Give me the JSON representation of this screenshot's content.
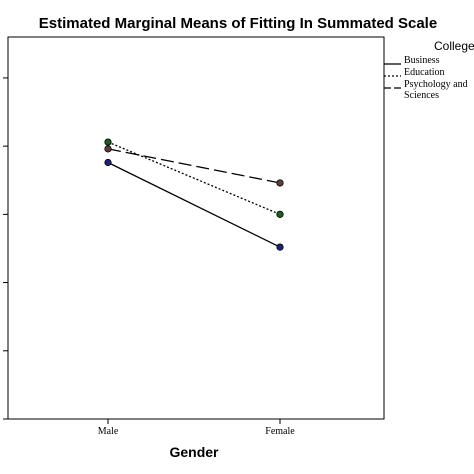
{
  "chart_data": {
    "type": "line",
    "title": "Estimated Marginal Means of Fitting In Summated Scale",
    "xlabel": "Gender",
    "ylabel": "",
    "categories": [
      "Male",
      "Female"
    ],
    "legend_title": "College",
    "legend_position": "right",
    "grid": false,
    "series": [
      {
        "name": "Business",
        "values": [
          3.76,
          2.52
        ],
        "dash": "",
        "marker_color": "#1a237e"
      },
      {
        "name": "Education",
        "values": [
          4.06,
          3.0
        ],
        "dash": "2,2",
        "marker_color": "#1b5e20"
      },
      {
        "name": "Psychology and Social Sciences",
        "display_lines": [
          "Psychology and",
          "Sciences"
        ],
        "values": [
          3.96,
          3.46
        ],
        "dash": "13,5",
        "marker_color": "#5d4037"
      }
    ],
    "ylim": [
      0,
      5.6
    ]
  }
}
